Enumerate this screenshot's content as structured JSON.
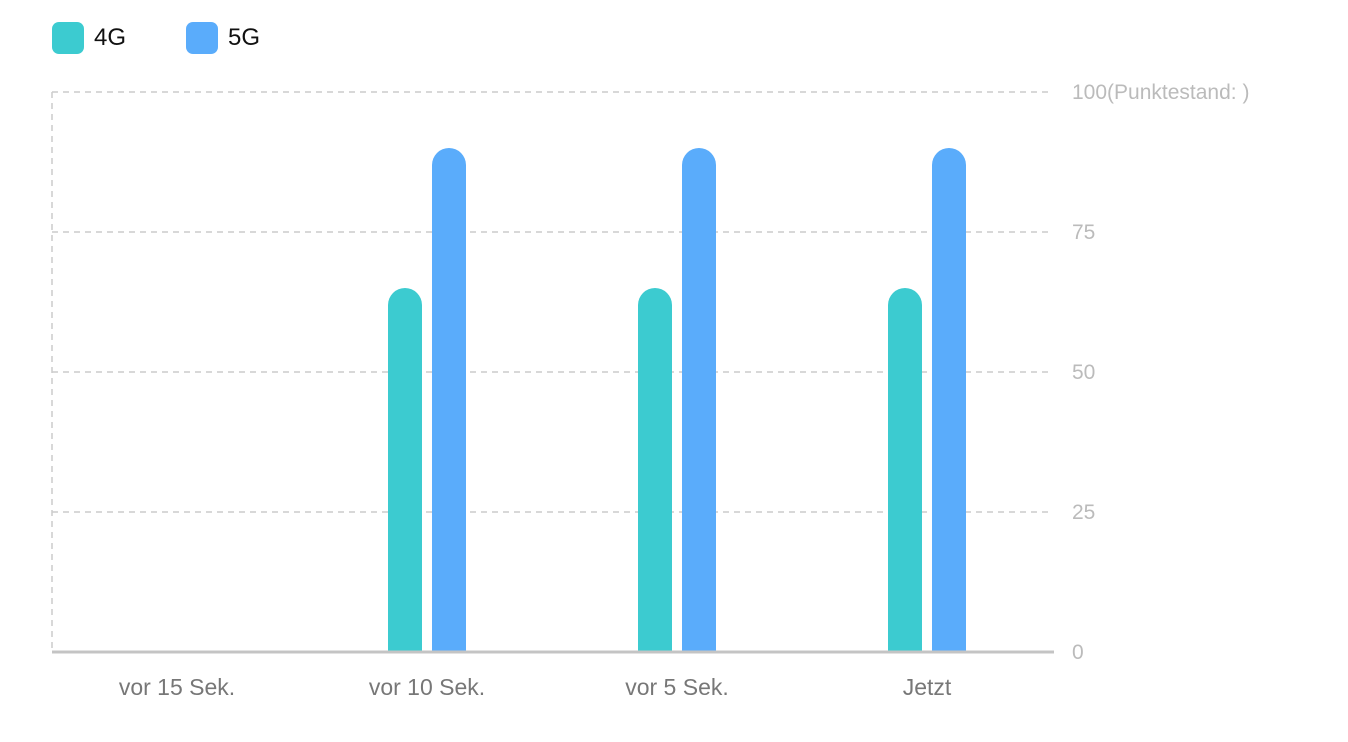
{
  "chart_data": {
    "type": "bar",
    "categories": [
      "vor 15 Sek.",
      "vor 10 Sek.",
      "vor 5 Sek.",
      "Jetzt"
    ],
    "series": [
      {
        "name": "4G",
        "color": "#3ccbd0",
        "values": [
          null,
          65,
          65,
          65
        ]
      },
      {
        "name": "5G",
        "color": "#5aacfb",
        "values": [
          null,
          90,
          90,
          90
        ]
      }
    ],
    "ylim": [
      0,
      100
    ],
    "yticks": [
      0,
      25,
      50,
      75,
      100
    ],
    "ytick_labels": [
      "0",
      "25",
      "50",
      "75",
      "100(Punktestand:  )"
    ],
    "y_axis_side": "right",
    "grid": true,
    "legend": "top-left"
  }
}
